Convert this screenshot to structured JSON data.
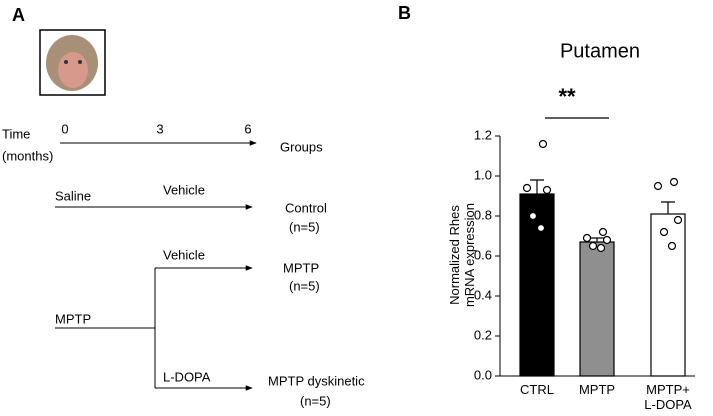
{
  "panel_a": {
    "label": "A",
    "timeline": {
      "axis_label_1": "Time",
      "axis_label_2": "(months)",
      "ticks": [
        "0",
        "3",
        "6"
      ],
      "header": "Groups"
    },
    "groups": [
      {
        "treatment": "Saline",
        "drug": "Vehicle",
        "group": "Control",
        "n": "(n=5)"
      },
      {
        "drug": "Vehicle",
        "group": "MPTP",
        "n": "(n=5)"
      },
      {
        "treatment": "MPTP",
        "drug": "L-DOPA",
        "group": "MPTP dyskinetic",
        "n": "(n=5)"
      }
    ]
  },
  "chart_data": {
    "type": "bar",
    "panel_label": "B",
    "title": "Putamen",
    "y_label": "Normalized Rhes\nmRNA expression",
    "categories": [
      "CTRL",
      "MPTP",
      "MPTP+\nL-DOPA"
    ],
    "values": [
      0.91,
      0.67,
      0.81
    ],
    "errors": [
      0.07,
      0.02,
      0.06
    ],
    "colors": [
      "#000000",
      "#8f8f8f",
      "#ffffff"
    ],
    "points": [
      [
        1.16,
        0.94,
        0.93,
        0.8,
        0.74
      ],
      [
        0.72,
        0.69,
        0.68,
        0.65,
        0.64
      ],
      [
        0.97,
        0.95,
        0.78,
        0.72,
        0.65
      ]
    ],
    "significance": "**",
    "ylim": [
      0,
      1.2
    ],
    "yticks": [
      {
        "value": 0,
        "label": "0.0"
      },
      0.2,
      0.4,
      0.6,
      0.8,
      {
        "value": 1,
        "label": "1.0"
      },
      1.2
    ]
  }
}
